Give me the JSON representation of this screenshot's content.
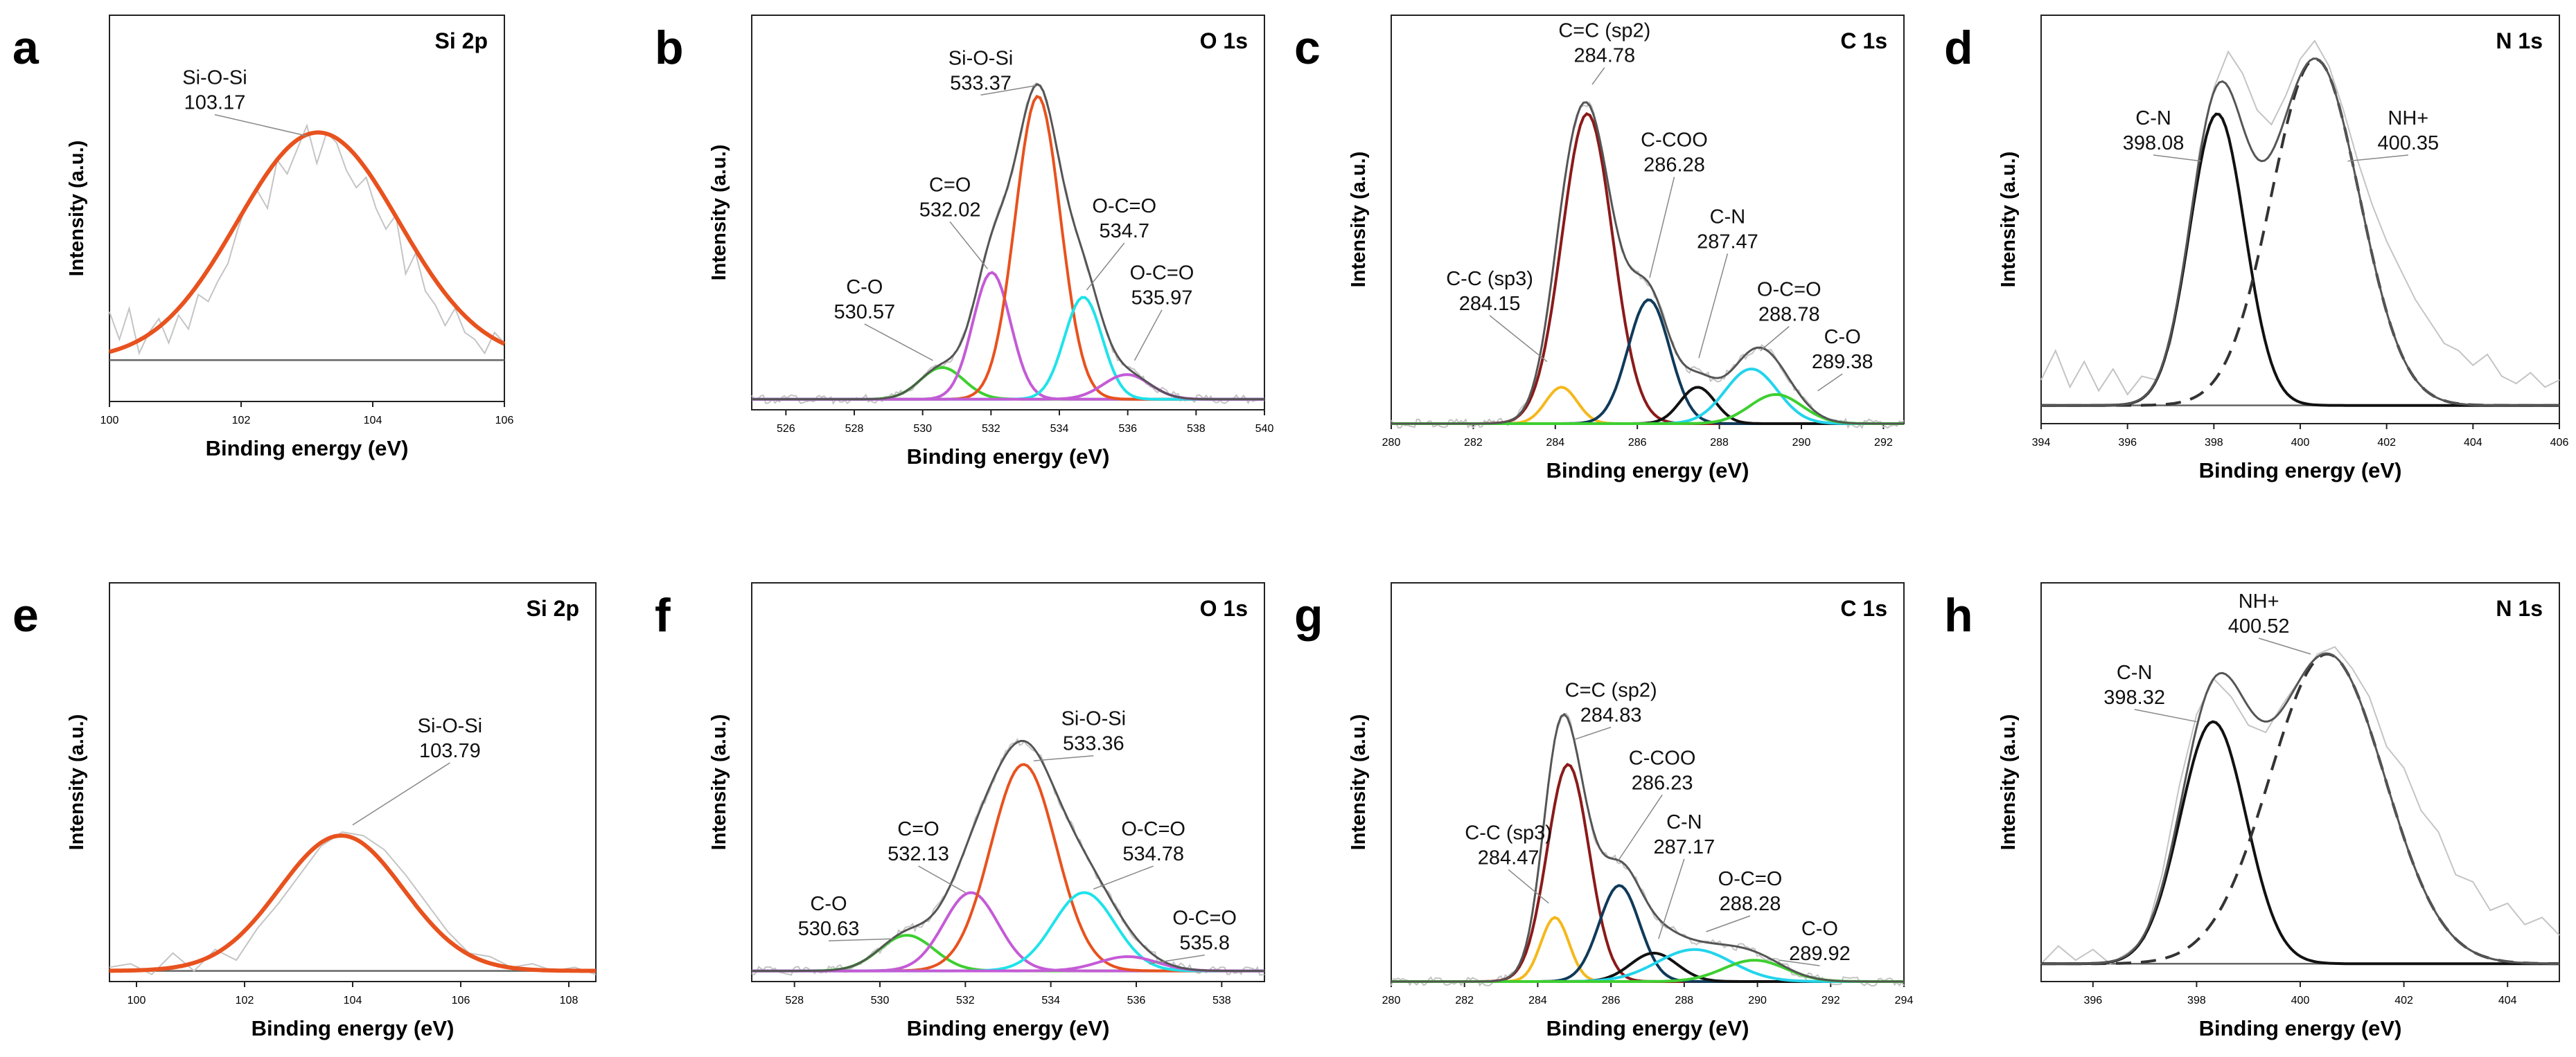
{
  "figure": {
    "background": "#ffffff",
    "frame_color": "#222222",
    "raw_color": "#c4c4c4",
    "envelope_color": "#555555",
    "baseline_color": "#666666"
  },
  "chart_data": [
    {
      "panel": "a",
      "title": "Si 2p",
      "type": "line",
      "xlabel": "Binding energy (eV)",
      "ylabel": "Intensity (a.u.)",
      "xlim": [
        100,
        106
      ],
      "xticks": [
        100,
        102,
        104,
        106
      ],
      "ylim": [
        0,
        1.12
      ],
      "baseline": 0.12,
      "raw": [
        0.26,
        0.18,
        0.27,
        0.14,
        0.2,
        0.24,
        0.17,
        0.25,
        0.21,
        0.31,
        0.29,
        0.35,
        0.4,
        0.5,
        0.58,
        0.61,
        0.56,
        0.7,
        0.66,
        0.73,
        0.8,
        0.69,
        0.78,
        0.75,
        0.67,
        0.62,
        0.65,
        0.56,
        0.5,
        0.54,
        0.37,
        0.43,
        0.32,
        0.28,
        0.22,
        0.27,
        0.2,
        0.18,
        0.14,
        0.2,
        0.17
      ],
      "components": [
        {
          "name": "Si-O-Si",
          "center": 103.17,
          "height": 0.66,
          "fwhm": 2.9,
          "color": "#e8521e",
          "dash": false
        }
      ],
      "envelope": false,
      "annotations": [
        {
          "lines": [
            "Si-O-Si",
            "103.17"
          ],
          "at": [
            101.6,
            0.92
          ],
          "point": [
            103.0,
            0.77
          ]
        }
      ]
    },
    {
      "panel": "b",
      "title": "O 1s",
      "type": "line",
      "xlabel": "Binding energy (eV)",
      "ylabel": "Intensity (a.u.)",
      "xlim": [
        525,
        540
      ],
      "xticks": [
        526,
        528,
        530,
        532,
        534,
        536,
        538,
        540
      ],
      "ylim": [
        0,
        1.12
      ],
      "baseline": 0.03,
      "raw": [],
      "components": [
        {
          "name": "C-O",
          "center": 530.57,
          "height": 0.09,
          "fwhm": 1.5,
          "color": "#3ecf30",
          "dash": false
        },
        {
          "name": "C=O",
          "center": 532.02,
          "height": 0.36,
          "fwhm": 1.3,
          "color": "#c45bd6",
          "dash": false
        },
        {
          "name": "Si-O-Si",
          "center": 533.37,
          "height": 0.86,
          "fwhm": 1.55,
          "color": "#e8521e",
          "dash": false
        },
        {
          "name": "O-C=O",
          "center": 534.7,
          "height": 0.29,
          "fwhm": 1.3,
          "color": "#1fe3ea",
          "dash": false
        },
        {
          "name": "O-C=O",
          "center": 535.97,
          "height": 0.07,
          "fwhm": 1.6,
          "color": "#c45bd6",
          "dash": false
        }
      ],
      "envelope": true,
      "annotations": [
        {
          "lines": [
            "Si-O-Si",
            "533.37"
          ],
          "at": [
            531.7,
            0.98
          ],
          "point": [
            533.3,
            0.92
          ]
        },
        {
          "lines": [
            "C=O",
            "532.02"
          ],
          "at": [
            530.8,
            0.62
          ],
          "point": [
            531.9,
            0.4
          ]
        },
        {
          "lines": [
            "O-C=O",
            "534.7"
          ],
          "at": [
            535.9,
            0.56
          ],
          "point": [
            534.8,
            0.34
          ]
        },
        {
          "lines": [
            "O-C=O",
            "535.97"
          ],
          "at": [
            537.0,
            0.37
          ],
          "point": [
            536.2,
            0.14
          ]
        },
        {
          "lines": [
            "C-O",
            "530.57"
          ],
          "at": [
            528.3,
            0.33
          ],
          "point": [
            530.3,
            0.14
          ]
        }
      ]
    },
    {
      "panel": "c",
      "title": "C 1s",
      "type": "line",
      "xlabel": "Binding energy (eV)",
      "ylabel": "Intensity (a.u.)",
      "xlim": [
        280,
        292.5
      ],
      "xticks": [
        280,
        282,
        284,
        286,
        288,
        290,
        292
      ],
      "ylim": [
        0,
        1.12
      ],
      "baseline": 0.0,
      "raw": [],
      "components": [
        {
          "name": "C-C (sp3)",
          "center": 284.15,
          "height": 0.1,
          "fwhm": 0.9,
          "color": "#f5b81c",
          "dash": false
        },
        {
          "name": "C=C (sp2)",
          "center": 284.78,
          "height": 0.85,
          "fwhm": 1.45,
          "color": "#8b1a1a",
          "dash": false
        },
        {
          "name": "C-COO",
          "center": 286.28,
          "height": 0.34,
          "fwhm": 1.2,
          "color": "#0f3a5a",
          "dash": false
        },
        {
          "name": "C-N",
          "center": 287.47,
          "height": 0.1,
          "fwhm": 1.0,
          "color": "#111111",
          "dash": false
        },
        {
          "name": "O-C=O",
          "center": 288.78,
          "height": 0.15,
          "fwhm": 1.5,
          "color": "#22d4ec",
          "dash": false
        },
        {
          "name": "C-O",
          "center": 289.38,
          "height": 0.08,
          "fwhm": 1.5,
          "color": "#3ecf30",
          "dash": false
        }
      ],
      "envelope": true,
      "annotations": [
        {
          "lines": [
            "C=C (sp2)",
            "284.78"
          ],
          "at": [
            285.2,
            1.06
          ],
          "point": [
            284.9,
            0.93
          ]
        },
        {
          "lines": [
            "C-COO",
            "286.28"
          ],
          "at": [
            286.9,
            0.76
          ],
          "point": [
            286.3,
            0.4
          ]
        },
        {
          "lines": [
            "C-N",
            "287.47"
          ],
          "at": [
            288.2,
            0.55
          ],
          "point": [
            287.5,
            0.18
          ]
        },
        {
          "lines": [
            "C-C (sp3)",
            "284.15"
          ],
          "at": [
            282.4,
            0.38
          ],
          "point": [
            283.8,
            0.17
          ]
        },
        {
          "lines": [
            "O-C=O",
            "288.78"
          ],
          "at": [
            289.7,
            0.35
          ],
          "point": [
            289.0,
            0.2
          ]
        },
        {
          "lines": [
            "C-O",
            "289.38"
          ],
          "at": [
            291.0,
            0.22
          ],
          "point": [
            290.4,
            0.09
          ]
        }
      ]
    },
    {
      "panel": "d",
      "title": "N 1s",
      "type": "line",
      "xlabel": "Binding energy (eV)",
      "ylabel": "Intensity (a.u.)",
      "xlim": [
        394,
        406
      ],
      "xticks": [
        394,
        396,
        398,
        400,
        402,
        404,
        406
      ],
      "ylim": [
        0,
        1.12
      ],
      "baseline": 0.05,
      "raw": [
        0.12,
        0.2,
        0.1,
        0.17,
        0.09,
        0.15,
        0.08,
        0.13,
        0.12,
        0.22,
        0.44,
        0.75,
        0.92,
        1.02,
        0.96,
        0.86,
        0.82,
        0.9,
        1.0,
        1.05,
        0.98,
        0.86,
        0.72,
        0.6,
        0.5,
        0.42,
        0.34,
        0.28,
        0.22,
        0.2,
        0.16,
        0.19,
        0.13,
        0.11,
        0.14,
        0.1,
        0.12
      ],
      "components": [
        {
          "name": "C-N",
          "center": 398.08,
          "height": 0.8,
          "fwhm": 1.5,
          "color": "#111111",
          "dash": false
        },
        {
          "name": "NH+",
          "center": 400.35,
          "height": 0.95,
          "fwhm": 2.4,
          "color": "#333333",
          "dash": true
        }
      ],
      "envelope": true,
      "annotations": [
        {
          "lines": [
            "C-N",
            "398.08"
          ],
          "at": [
            396.6,
            0.82
          ],
          "point": [
            397.7,
            0.72
          ]
        },
        {
          "lines": [
            "NH+",
            "400.35"
          ],
          "at": [
            402.5,
            0.82
          ],
          "point": [
            401.1,
            0.72
          ]
        }
      ]
    },
    {
      "panel": "e",
      "title": "Si 2p",
      "type": "line",
      "xlabel": "Binding energy (eV)",
      "ylabel": "Intensity (a.u.)",
      "xlim": [
        99.5,
        108.5
      ],
      "xticks": [
        100,
        102,
        104,
        106,
        108
      ],
      "ylim": [
        0,
        1.12
      ],
      "baseline": 0.03,
      "raw": [
        0.04,
        0.05,
        0.02,
        0.08,
        0.03,
        0.09,
        0.06,
        0.15,
        0.22,
        0.3,
        0.38,
        0.42,
        0.41,
        0.37,
        0.3,
        0.22,
        0.14,
        0.08,
        0.07,
        0.04,
        0.05,
        0.03,
        0.04,
        0.02
      ],
      "components": [
        {
          "name": "Si-O-Si",
          "center": 103.79,
          "height": 0.38,
          "fwhm": 2.7,
          "color": "#e8521e",
          "dash": false
        }
      ],
      "envelope": false,
      "annotations": [
        {
          "lines": [
            "Si-O-Si",
            "103.79"
          ],
          "at": [
            105.8,
            0.7
          ],
          "point": [
            104.0,
            0.44
          ]
        }
      ]
    },
    {
      "panel": "f",
      "title": "O 1s",
      "type": "line",
      "xlabel": "Binding energy (eV)",
      "ylabel": "Intensity (a.u.)",
      "xlim": [
        527,
        539
      ],
      "xticks": [
        528,
        530,
        532,
        534,
        536,
        538
      ],
      "ylim": [
        0,
        1.12
      ],
      "baseline": 0.03,
      "raw": [],
      "components": [
        {
          "name": "C-O",
          "center": 530.63,
          "height": 0.1,
          "fwhm": 1.5,
          "color": "#3ecf30",
          "dash": false
        },
        {
          "name": "C=O",
          "center": 532.13,
          "height": 0.22,
          "fwhm": 1.5,
          "color": "#c45bd6",
          "dash": false
        },
        {
          "name": "Si-O-Si",
          "center": 533.36,
          "height": 0.58,
          "fwhm": 1.8,
          "color": "#e8521e",
          "dash": false
        },
        {
          "name": "O-C=O",
          "center": 534.78,
          "height": 0.22,
          "fwhm": 1.7,
          "color": "#1fe3ea",
          "dash": false
        },
        {
          "name": "O-C=O",
          "center": 535.8,
          "height": 0.04,
          "fwhm": 1.6,
          "color": "#c45bd6",
          "dash": false
        }
      ],
      "envelope": true,
      "annotations": [
        {
          "lines": [
            "Si-O-Si",
            "533.36"
          ],
          "at": [
            535.0,
            0.72
          ],
          "point": [
            533.6,
            0.62
          ]
        },
        {
          "lines": [
            "C=O",
            "532.13"
          ],
          "at": [
            530.9,
            0.41
          ],
          "point": [
            532.0,
            0.25
          ]
        },
        {
          "lines": [
            "O-C=O",
            "534.78"
          ],
          "at": [
            536.4,
            0.41
          ],
          "point": [
            535.0,
            0.26
          ]
        },
        {
          "lines": [
            "C-O",
            "530.63"
          ],
          "at": [
            528.8,
            0.2
          ],
          "point": [
            530.3,
            0.12
          ]
        },
        {
          "lines": [
            "O-C=O",
            "535.8"
          ],
          "at": [
            537.6,
            0.16
          ],
          "point": [
            536.3,
            0.05
          ]
        }
      ]
    },
    {
      "panel": "g",
      "title": "C 1s",
      "type": "line",
      "xlabel": "Binding energy (eV)",
      "ylabel": "Intensity (a.u.)",
      "xlim": [
        280,
        294
      ],
      "xticks": [
        280,
        282,
        284,
        286,
        288,
        290,
        292,
        294
      ],
      "ylim": [
        0,
        1.12
      ],
      "baseline": 0.0,
      "raw": [],
      "components": [
        {
          "name": "C-C (sp3)",
          "center": 284.47,
          "height": 0.18,
          "fwhm": 0.9,
          "color": "#f5b81c",
          "dash": false
        },
        {
          "name": "C=C (sp2)",
          "center": 284.83,
          "height": 0.61,
          "fwhm": 1.35,
          "color": "#8b1a1a",
          "dash": false
        },
        {
          "name": "C-COO",
          "center": 286.23,
          "height": 0.27,
          "fwhm": 1.3,
          "color": "#0f3a5a",
          "dash": false
        },
        {
          "name": "C-N",
          "center": 287.17,
          "height": 0.08,
          "fwhm": 1.5,
          "color": "#111111",
          "dash": false
        },
        {
          "name": "O-C=O",
          "center": 288.28,
          "height": 0.09,
          "fwhm": 2.4,
          "color": "#22d4ec",
          "dash": false
        },
        {
          "name": "C-O",
          "center": 289.92,
          "height": 0.06,
          "fwhm": 2.0,
          "color": "#3ecf30",
          "dash": false
        }
      ],
      "envelope": true,
      "annotations": [
        {
          "lines": [
            "C=C (sp2)",
            "284.83"
          ],
          "at": [
            286.0,
            0.8
          ],
          "point": [
            285.0,
            0.68
          ]
        },
        {
          "lines": [
            "C-COO",
            "286.23"
          ],
          "at": [
            287.4,
            0.61
          ],
          "point": [
            286.2,
            0.34
          ]
        },
        {
          "lines": [
            "C-N",
            "287.17"
          ],
          "at": [
            288.0,
            0.43
          ],
          "point": [
            287.3,
            0.12
          ]
        },
        {
          "lines": [
            "C-C (sp3)",
            "284.47"
          ],
          "at": [
            283.2,
            0.4
          ],
          "point": [
            284.3,
            0.22
          ]
        },
        {
          "lines": [
            "O-C=O",
            "288.28"
          ],
          "at": [
            289.8,
            0.27
          ],
          "point": [
            288.6,
            0.14
          ]
        },
        {
          "lines": [
            "C-O",
            "289.92"
          ],
          "at": [
            291.7,
            0.13
          ],
          "point": [
            290.6,
            0.06
          ]
        }
      ]
    },
    {
      "panel": "h",
      "title": "N 1s",
      "type": "line",
      "xlabel": "Binding energy (eV)",
      "ylabel": "Intensity (a.u.)",
      "xlim": [
        395,
        405
      ],
      "xticks": [
        396,
        398,
        400,
        402,
        404
      ],
      "ylim": [
        0,
        1.12
      ],
      "baseline": 0.05,
      "raw": [
        0.05,
        0.1,
        0.06,
        0.09,
        0.05,
        0.08,
        0.12,
        0.3,
        0.55,
        0.75,
        0.85,
        0.8,
        0.72,
        0.7,
        0.78,
        0.85,
        0.92,
        0.94,
        0.88,
        0.8,
        0.66,
        0.6,
        0.48,
        0.42,
        0.3,
        0.28,
        0.2,
        0.22,
        0.16,
        0.18,
        0.13
      ],
      "components": [
        {
          "name": "C-N",
          "center": 398.32,
          "height": 0.68,
          "fwhm": 1.5,
          "color": "#111111",
          "dash": false
        },
        {
          "name": "NH+",
          "center": 400.52,
          "height": 0.87,
          "fwhm": 2.6,
          "color": "#333333",
          "dash": true
        }
      ],
      "envelope": true,
      "annotations": [
        {
          "lines": [
            "C-N",
            "398.32"
          ],
          "at": [
            396.8,
            0.85
          ],
          "point": [
            398.0,
            0.73
          ]
        },
        {
          "lines": [
            "NH+",
            "400.52"
          ],
          "at": [
            399.2,
            1.05
          ],
          "point": [
            400.2,
            0.92
          ]
        }
      ]
    }
  ]
}
